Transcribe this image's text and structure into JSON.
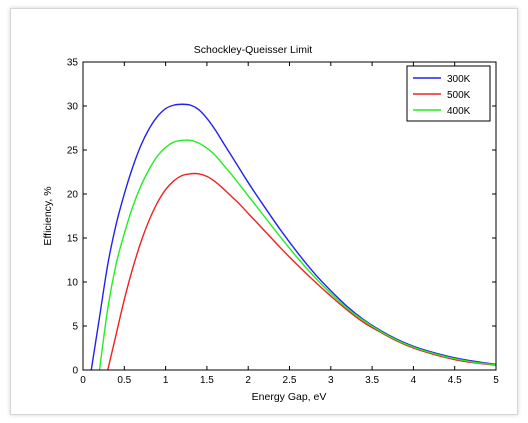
{
  "chart_data": {
    "type": "line",
    "title": "Schockley-Queisser Limit",
    "xlabel": "Energy Gap, eV",
    "ylabel": "Efficiency, %",
    "xlim": [
      0,
      5
    ],
    "ylim": [
      0,
      35
    ],
    "x_ticks": [
      "0",
      "0.5",
      "1",
      "1.5",
      "2",
      "2.5",
      "3",
      "3.5",
      "4",
      "4.5",
      "5"
    ],
    "y_ticks": [
      "0",
      "5",
      "10",
      "15",
      "20",
      "25",
      "30",
      "35"
    ],
    "grid": false,
    "legend_position": "top-right",
    "x": [
      0.1,
      0.2,
      0.3,
      0.4,
      0.5,
      0.6,
      0.7,
      0.8,
      0.9,
      1.0,
      1.1,
      1.2,
      1.3,
      1.4,
      1.5,
      1.6,
      1.7,
      1.8,
      1.9,
      2.0,
      2.2,
      2.4,
      2.6,
      2.8,
      3.0,
      3.2,
      3.4,
      3.6,
      3.8,
      4.0,
      4.2,
      4.4,
      4.6,
      4.8,
      5.0
    ],
    "series": [
      {
        "name": "300K",
        "color": "#2222ee",
        "values": [
          0.0,
          6.0,
          12.0,
          16.5,
          20.0,
          23.0,
          25.5,
          27.4,
          28.8,
          29.7,
          30.1,
          30.2,
          30.1,
          29.6,
          28.6,
          27.3,
          25.8,
          24.3,
          22.8,
          21.3,
          18.5,
          15.8,
          13.3,
          11.0,
          9.0,
          7.2,
          5.7,
          4.5,
          3.5,
          2.7,
          2.1,
          1.6,
          1.2,
          0.9,
          0.65
        ]
      },
      {
        "name": "500K",
        "color": "#ee2222",
        "values": [
          null,
          null,
          0.0,
          4.0,
          8.0,
          11.5,
          14.5,
          17.0,
          19.0,
          20.5,
          21.5,
          22.1,
          22.3,
          22.3,
          22.0,
          21.4,
          20.6,
          19.7,
          18.8,
          17.8,
          15.8,
          13.8,
          11.9,
          10.1,
          8.4,
          6.8,
          5.4,
          4.3,
          3.3,
          2.5,
          1.9,
          1.4,
          1.0,
          0.75,
          0.55
        ]
      },
      {
        "name": "400K",
        "color": "#22ee22",
        "values": [
          null,
          0.0,
          7.0,
          12.0,
          15.5,
          18.5,
          20.9,
          22.8,
          24.3,
          25.3,
          25.9,
          26.1,
          26.1,
          25.8,
          25.2,
          24.4,
          23.3,
          22.2,
          21.0,
          19.8,
          17.4,
          15.0,
          12.7,
          10.6,
          8.7,
          7.0,
          5.6,
          4.4,
          3.4,
          2.6,
          2.0,
          1.5,
          1.1,
          0.8,
          0.6
        ]
      }
    ]
  }
}
